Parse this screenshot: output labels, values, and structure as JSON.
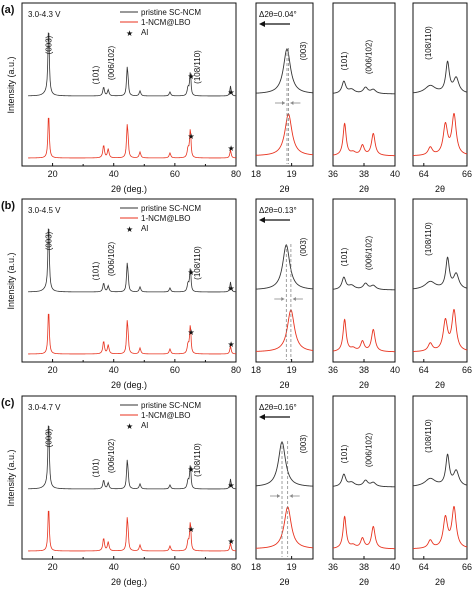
{
  "colors": {
    "pristine": "#333333",
    "coated": "#e8321e",
    "axis": "#111111"
  },
  "labels": {
    "ylabel": "Intensity (a.u.)",
    "xlabel_main": "2θ (deg.)",
    "xlabel_small": "2θ",
    "peak_003": "(003)",
    "peak_101": "(101)",
    "peak_006_102": "(006/102)",
    "peak_108_110": "(108/110)",
    "al_marker": "★",
    "legend_al": "Al"
  },
  "legend": {
    "pristine": "pristine SC-NCM",
    "coated": "1-NCM@LBO",
    "al": "Al"
  },
  "panels": [
    {
      "letter": "(a)",
      "voltage": "3.0-4.3 V",
      "shift": "Δ2θ=0.04°"
    },
    {
      "letter": "(b)",
      "voltage": "3.0-4.5 V",
      "shift": "Δ2θ=0.13°"
    },
    {
      "letter": "(c)",
      "voltage": "3.0-4.7 V",
      "shift": "Δ2θ=0.16°"
    }
  ],
  "chart_data": {
    "type": "line",
    "ylabel": "Intensity (a.u.)",
    "xlabel": "2θ (deg.)",
    "series_names": [
      "pristine SC-NCM",
      "1-NCM@LBO"
    ],
    "full_range_xlim": [
      10,
      80
    ],
    "full_range_xticks": [
      20,
      40,
      60,
      80
    ],
    "peaks_deg": {
      "003": 18.7,
      "101": 36.7,
      "006_102": 38.2,
      "104": 44.4,
      "015": 48.6,
      "107": 58.4,
      "018": 64.3,
      "110": 64.9,
      "Al_1": 65.1,
      "Al_2": 78.2
    },
    "zoom_003": {
      "xlim": [
        18,
        19.6
      ],
      "xticks": [
        18,
        19
      ]
    },
    "zoom_101": {
      "xlim": [
        36,
        40
      ],
      "xticks": [
        36,
        38,
        40
      ]
    },
    "zoom_108": {
      "xlim": [
        63.5,
        66
      ],
      "xticks": [
        64,
        66
      ]
    },
    "shift_2theta_deg": [
      0.04,
      0.13,
      0.16
    ],
    "voltage_windows": [
      "3.0-4.3 V",
      "3.0-4.5 V",
      "3.0-4.7 V"
    ]
  }
}
